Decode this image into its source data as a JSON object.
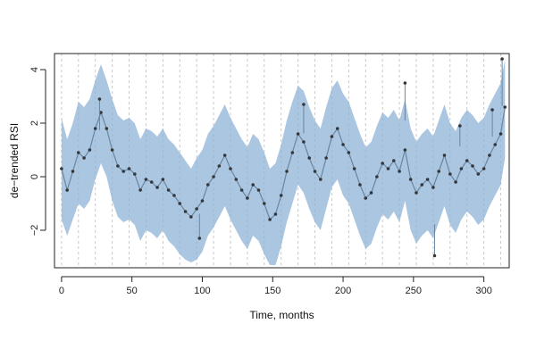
{
  "chart_data": {
    "type": "line",
    "title": "",
    "xlabel": "Time, months",
    "ylabel": "de−trended RSI",
    "xlim": [
      -5,
      318
    ],
    "ylim": [
      -3.4,
      4.6
    ],
    "x_ticks": [
      0,
      50,
      100,
      150,
      200,
      250,
      300
    ],
    "x_tick_labels": [
      "0",
      "50",
      "100",
      "150",
      "200",
      "250",
      "300"
    ],
    "y_ticks": [
      -2,
      0,
      2,
      4
    ],
    "y_tick_labels": [
      "−2",
      "0",
      "2",
      "4"
    ],
    "grid": "vertical dashed lines every 12 months",
    "vertical_grid_every": 12,
    "colors": {
      "band": "#8fb3d6",
      "line": "#6a85a0",
      "points": "#33373c",
      "grid": "#c8c8c8",
      "frame": "#222222"
    },
    "series": [
      {
        "x": [
          0,
          4,
          8,
          12,
          16,
          20,
          24,
          28,
          32,
          36,
          40,
          44,
          48,
          52,
          56,
          60,
          64,
          68,
          72,
          76,
          80,
          84,
          88,
          92,
          96,
          100,
          104,
          108,
          112,
          116,
          120,
          124,
          128,
          132,
          136,
          140,
          144,
          148,
          152,
          156,
          160,
          164,
          168,
          172,
          176,
          180,
          184,
          188,
          192,
          196,
          200,
          204,
          208,
          212,
          216,
          220,
          224,
          228,
          232,
          236,
          240,
          244,
          248,
          252,
          256,
          260,
          264,
          268,
          272,
          276,
          280,
          284,
          288,
          292,
          296,
          300,
          304,
          308,
          312,
          315
        ],
        "y": [
          0.3,
          -0.5,
          0.2,
          0.9,
          0.7,
          1.0,
          1.8,
          2.4,
          1.8,
          1.0,
          0.4,
          0.2,
          0.3,
          0.1,
          -0.5,
          -0.1,
          -0.2,
          -0.4,
          -0.1,
          -0.5,
          -0.7,
          -1.0,
          -1.3,
          -1.5,
          -1.2,
          -0.9,
          -0.3,
          0.0,
          0.4,
          0.8,
          0.3,
          -0.1,
          -0.5,
          -0.8,
          -0.3,
          -0.5,
          -1.0,
          -1.6,
          -1.4,
          -0.7,
          0.2,
          0.9,
          1.6,
          1.3,
          0.7,
          0.2,
          -0.1,
          0.7,
          1.5,
          1.8,
          1.2,
          0.9,
          0.3,
          -0.3,
          -0.8,
          -0.6,
          0.0,
          0.5,
          0.3,
          0.6,
          0.2,
          1.0,
          -0.1,
          -0.6,
          -0.3,
          -0.1,
          -0.4,
          0.2,
          0.8,
          0.1,
          -0.2,
          0.3,
          0.6,
          0.4,
          0.1,
          0.3,
          0.8,
          1.2,
          1.6,
          2.6
        ],
        "lower": [
          -1.6,
          -2.2,
          -1.6,
          -1.0,
          -1.2,
          -0.9,
          -0.1,
          0.5,
          0.0,
          -0.9,
          -1.5,
          -1.7,
          -1.6,
          -1.8,
          -2.4,
          -2.0,
          -2.1,
          -2.3,
          -2.0,
          -2.4,
          -2.6,
          -2.9,
          -3.1,
          -3.2,
          -3.1,
          -2.8,
          -2.2,
          -1.9,
          -1.5,
          -1.1,
          -1.6,
          -2.0,
          -2.4,
          -2.7,
          -2.2,
          -2.4,
          -2.9,
          -3.3,
          -3.3,
          -2.6,
          -1.7,
          -1.0,
          -0.3,
          -0.6,
          -1.2,
          -1.7,
          -2.0,
          -1.2,
          -0.4,
          -0.1,
          -0.7,
          -1.0,
          -1.6,
          -2.2,
          -2.7,
          -2.5,
          -1.9,
          -1.4,
          -1.6,
          -1.3,
          -1.7,
          -0.9,
          -2.0,
          -2.5,
          -2.2,
          -2.0,
          -2.3,
          -1.7,
          -1.1,
          -1.8,
          -2.1,
          -1.6,
          -1.3,
          -1.5,
          -1.8,
          -1.6,
          -1.1,
          -0.7,
          -0.3,
          0.7
        ],
        "upper": [
          2.2,
          1.4,
          2.0,
          2.8,
          2.6,
          2.9,
          3.6,
          4.2,
          3.6,
          2.9,
          2.3,
          2.1,
          2.2,
          2.0,
          1.4,
          1.8,
          1.7,
          1.5,
          1.8,
          1.4,
          1.2,
          0.9,
          0.6,
          0.3,
          0.7,
          1.0,
          1.6,
          1.9,
          2.3,
          2.7,
          2.2,
          1.8,
          1.4,
          1.1,
          1.6,
          1.4,
          0.9,
          0.3,
          0.5,
          1.2,
          2.1,
          2.8,
          3.4,
          3.2,
          2.6,
          2.1,
          1.8,
          2.6,
          3.3,
          3.6,
          3.1,
          2.8,
          2.2,
          1.6,
          1.1,
          1.3,
          1.9,
          2.4,
          2.2,
          2.5,
          2.1,
          2.9,
          1.8,
          1.3,
          1.6,
          1.8,
          1.5,
          2.1,
          2.7,
          2.0,
          1.7,
          2.2,
          2.5,
          2.3,
          2.0,
          2.2,
          2.7,
          3.1,
          3.5,
          4.4
        ]
      }
    ],
    "outliers": [
      {
        "x": 244,
        "y": 3.5
      },
      {
        "x": 265,
        "y": -2.95
      },
      {
        "x": 313,
        "y": 4.4
      },
      {
        "x": 98,
        "y": -2.3
      },
      {
        "x": 27,
        "y": 2.9
      },
      {
        "x": 172,
        "y": 2.7
      },
      {
        "x": 283,
        "y": 1.9
      },
      {
        "x": 306,
        "y": 2.5
      }
    ]
  }
}
